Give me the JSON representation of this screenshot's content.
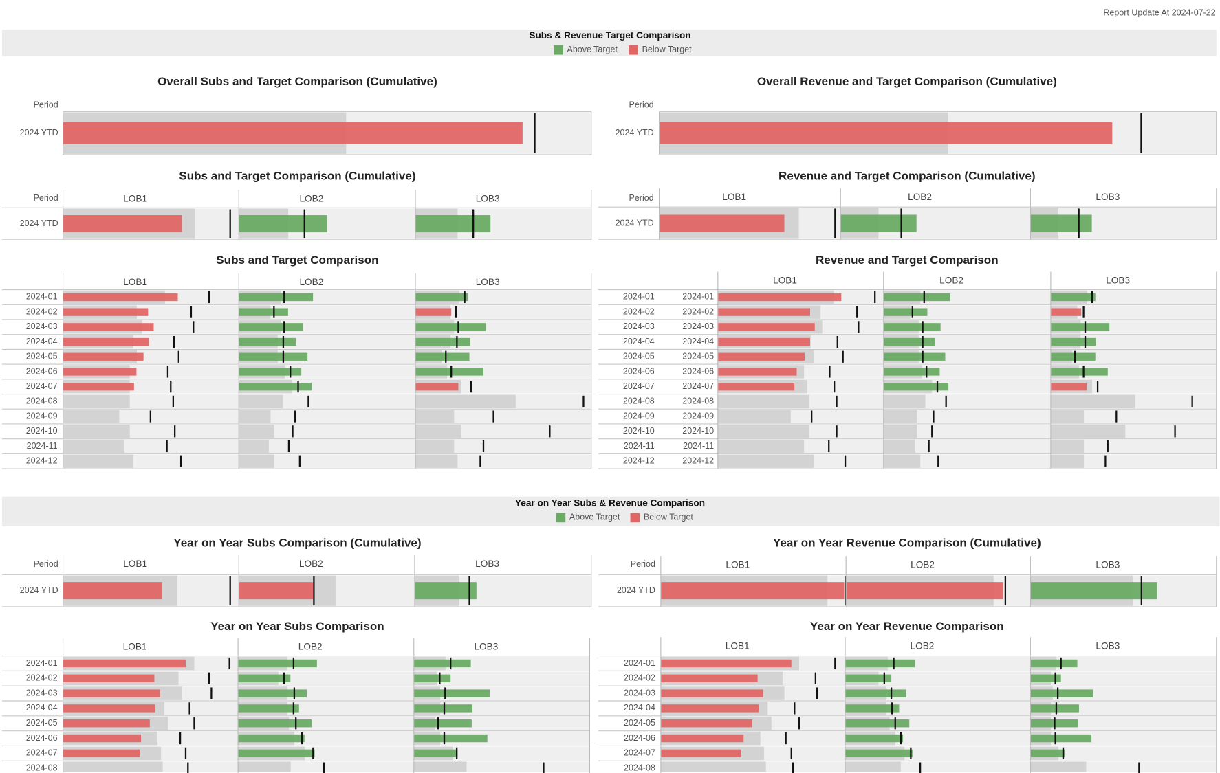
{
  "header": {
    "report_update": "Report Update At 2024-07-22"
  },
  "sections": [
    {
      "title": "Subs & Revenue Target Comparison",
      "legend": [
        {
          "label": "Above Target",
          "color": "#6aaa64"
        },
        {
          "label": "Below Target",
          "color": "#e06666"
        }
      ]
    },
    {
      "title": "Year on Year Subs & Revenue Comparison",
      "legend": [
        {
          "label": "Above Target",
          "color": "#6aaa64"
        },
        {
          "label": "Below Target",
          "color": "#e06666"
        }
      ]
    }
  ],
  "chart_data": [
    {
      "type": "bullet",
      "title": "Overall Subs and Target Comparison (Cumulative)",
      "period_header": "Period",
      "categories": [
        "2024 YTD"
      ],
      "xlim": [
        0,
        100
      ],
      "series": [
        {
          "values": [
            87.0
          ],
          "targets": [
            89.3
          ],
          "ranges": [
            53.6
          ]
        }
      ]
    },
    {
      "type": "bullet",
      "title": "Overall Revenue and Target Comparison (Cumulative)",
      "period_header": "Period",
      "categories": [
        "2024 YTD"
      ],
      "xlim": [
        0,
        100
      ],
      "series": [
        {
          "values": [
            81.3
          ],
          "targets": [
            86.5
          ],
          "ranges": [
            51.8
          ]
        }
      ]
    },
    {
      "type": "bullet",
      "title": "Subs and Target Comparison (Cumulative)",
      "period_header": "Period",
      "categories": [
        "2024 YTD"
      ],
      "xlim": [
        0,
        100
      ],
      "series": [
        {
          "name": "LOB1",
          "values": [
            67.6
          ],
          "targets": [
            95.1
          ],
          "ranges": [
            75
          ]
        },
        {
          "name": "LOB2",
          "values": [
            50.0
          ],
          "targets": [
            37.2
          ],
          "ranges": [
            28
          ]
        },
        {
          "name": "LOB3",
          "values": [
            42.7
          ],
          "targets": [
            32.9
          ],
          "ranges": [
            24
          ]
        }
      ]
    },
    {
      "type": "bullet",
      "title": "Revenue and Target Comparison (Cumulative)",
      "period_header": "Period",
      "categories": [
        "2024 YTD"
      ],
      "xlim": [
        0,
        100
      ],
      "series": [
        {
          "name": "LOB1",
          "values": [
            69.0
          ],
          "targets": [
            97.0
          ],
          "ranges": [
            77
          ]
        },
        {
          "name": "LOB2",
          "values": [
            40.0
          ],
          "targets": [
            32.0
          ],
          "ranges": [
            20
          ]
        },
        {
          "name": "LOB3",
          "values": [
            33.0
          ],
          "targets": [
            26.0
          ],
          "ranges": [
            15
          ]
        }
      ]
    },
    {
      "type": "bullet",
      "title": "Subs and Target Comparison",
      "xlim": [
        0,
        100
      ],
      "categories": [
        "2024-01",
        "2024-02",
        "2024-03",
        "2024-04",
        "2024-05",
        "2024-06",
        "2024-07",
        "2024-08",
        "2024-09",
        "2024-10",
        "2024-11",
        "2024-12"
      ],
      "series": [
        {
          "name": "LOB1",
          "values": [
            65.3,
            48.4,
            51.6,
            48.9,
            45.8,
            41.8,
            40.4,
            null,
            null,
            null,
            null,
            null
          ],
          "targets": [
            83.1,
            72.9,
            74.2,
            63.1,
            65.8,
            59.6,
            61.3,
            62.7,
            49.8,
            63.6,
            59.1,
            67.1
          ],
          "ranges": [
            58,
            42,
            45,
            40,
            42,
            38,
            38,
            38,
            32,
            38,
            35,
            40
          ]
        },
        {
          "name": "LOB2",
          "values": [
            42.0,
            27.9,
            36.3,
            32.3,
            38.9,
            35.4,
            41.2,
            null,
            null,
            null,
            null,
            null
          ],
          "targets": [
            25.7,
            19.9,
            25.7,
            25.2,
            25.2,
            29.2,
            33.6,
            39.4,
            31.9,
            30.5,
            28.3,
            34.5
          ],
          "ranges": [
            24,
            18,
            24,
            22,
            22,
            26,
            30,
            25,
            18,
            20,
            17,
            20
          ]
        },
        {
          "name": "LOB3",
          "values": [
            29.8,
            20.4,
            40.0,
            31.1,
            30.7,
            38.7,
            24.4,
            null,
            null,
            null,
            null,
            null
          ],
          "targets": [
            28.0,
            23.1,
            24.4,
            23.6,
            17.3,
            20.4,
            31.6,
            95.6,
            44.4,
            76.4,
            38.7,
            36.9
          ],
          "ranges": [
            25,
            20,
            22,
            20,
            15,
            18,
            26,
            57,
            22,
            26,
            22,
            24
          ]
        }
      ]
    },
    {
      "type": "bullet",
      "title": "Revenue and Target Comparison",
      "xlim": [
        0,
        100
      ],
      "categories": [
        "2024-01",
        "2024-02",
        "2024-03",
        "2024-04",
        "2024-05",
        "2024-06",
        "2024-07",
        "2024-08",
        "2024-09",
        "2024-10",
        "2024-11",
        "2024-12"
      ],
      "series": [
        {
          "name": "LOB1",
          "values": [
            74.5,
            55.7,
            58.5,
            55.7,
            52.4,
            47.6,
            46.2,
            null,
            null,
            null,
            null,
            null
          ],
          "targets": [
            94.8,
            84.0,
            84.9,
            72.2,
            75.5,
            67.5,
            70.3,
            71.7,
            56.6,
            71.7,
            67.0,
            76.9
          ],
          "ranges": [
            70,
            62,
            63,
            56,
            58,
            52,
            54,
            55,
            44,
            55,
            52,
            58
          ]
        },
        {
          "name": "LOB2",
          "values": [
            39.7,
            26.2,
            34.1,
            30.8,
            36.9,
            33.6,
            38.8,
            null,
            null,
            null,
            null,
            null
          ],
          "targets": [
            24.3,
            17.3,
            23.4,
            23.4,
            23.4,
            25.7,
            32.2,
            37.4,
            29.9,
            29.0,
            27.1,
            32.7
          ],
          "ranges": [
            22,
            16,
            21,
            21,
            21,
            23,
            29,
            25,
            20,
            20,
            19,
            22
          ]
        },
        {
          "name": "LOB3",
          "values": [
            26.9,
            18.4,
            35.4,
            27.4,
            26.9,
            34.4,
            21.7,
            null,
            null,
            null,
            null,
            null
          ],
          "targets": [
            25.0,
            19.8,
            20.8,
            20.8,
            14.6,
            19.8,
            28.3,
            85.4,
            39.6,
            75.0,
            34.4,
            33.0
          ],
          "ranges": [
            22,
            16,
            18,
            18,
            13,
            17,
            25,
            51,
            20,
            45,
            20,
            20
          ]
        }
      ]
    },
    {
      "type": "bullet",
      "title": "Year on Year Subs Comparison (Cumulative)",
      "period_header": "Period",
      "categories": [
        "2024 YTD"
      ],
      "xlim": [
        0,
        100
      ],
      "series": [
        {
          "name": "LOB1",
          "values": [
            56.4
          ],
          "targets": [
            95.1
          ],
          "ranges": [
            65
          ]
        },
        {
          "name": "LOB2",
          "values": [
            42.2
          ],
          "targets": [
            42.7
          ],
          "ranges": [
            55
          ]
        },
        {
          "name": "LOB3",
          "values": [
            35.0
          ],
          "targets": [
            31.0
          ],
          "ranges": [
            25
          ]
        }
      ]
    },
    {
      "type": "bullet",
      "title": "Year on Year Revenue Comparison (Cumulative)",
      "period_header": "Period",
      "categories": [
        "2024 YTD"
      ],
      "xlim": [
        0,
        100
      ],
      "series": [
        {
          "name": "LOB1",
          "values": [
            99.0
          ],
          "targets": [
            100
          ],
          "ranges": [
            90
          ]
        },
        {
          "name": "LOB2",
          "values": [
            85.2
          ],
          "targets": [
            86.4
          ],
          "ranges": [
            80
          ]
        },
        {
          "name": "LOB3",
          "values": [
            68.1
          ],
          "targets": [
            59.7
          ],
          "ranges": [
            55
          ]
        }
      ]
    },
    {
      "type": "bullet",
      "title": "Year on Year Subs Comparison",
      "xlim": [
        0,
        100
      ],
      "categories": [
        "2024-01",
        "2024-02",
        "2024-03",
        "2024-04",
        "2024-05",
        "2024-06",
        "2024-07",
        "2024-08"
      ],
      "series": [
        {
          "name": "LOB1",
          "values": [
            70.1,
            52.2,
            55.4,
            52.7,
            49.6,
            44.6,
            43.8,
            null
          ],
          "targets": [
            95.1,
            83.5,
            84.8,
            72.3,
            75.0,
            67.0,
            70.1,
            71.4
          ],
          "ranges": [
            75,
            66,
            68,
            58,
            60,
            54,
            56,
            57
          ]
        },
        {
          "name": "LOB2",
          "values": [
            44.9,
            29.8,
            39.1,
            34.7,
            41.8,
            37.8,
            43.6,
            null
          ],
          "targets": [
            31.6,
            26.2,
            32.0,
            31.6,
            32.9,
            36.4,
            42.7,
            48.9
          ],
          "ranges": [
            28,
            23,
            28,
            28,
            29,
            32,
            38,
            30
          ]
        },
        {
          "name": "LOB3",
          "values": [
            32.4,
            20.9,
            43.1,
            33.3,
            32.9,
            41.8,
            24.9,
            null
          ],
          "targets": [
            20.9,
            14.7,
            17.8,
            17.3,
            13.8,
            17.3,
            24.4,
            73.8
          ],
          "ranges": [
            18,
            13,
            15,
            15,
            12,
            15,
            22,
            30
          ]
        }
      ]
    },
    {
      "type": "bullet",
      "title": "Year on Year Revenue Comparison",
      "xlim": [
        0,
        100
      ],
      "categories": [
        "2024-01",
        "2024-02",
        "2024-03",
        "2024-04",
        "2024-05",
        "2024-06",
        "2024-07",
        "2024-08"
      ],
      "series": [
        {
          "name": "LOB1",
          "values": [
            70.8,
            52.5,
            55.5,
            53.0,
            49.6,
            44.9,
            43.6,
            null
          ],
          "targets": [
            94.5,
            83.9,
            84.7,
            72.5,
            75.0,
            67.8,
            70.8,
            71.6
          ],
          "ranges": [
            75,
            66,
            67,
            58,
            60,
            54,
            56,
            57
          ]
        },
        {
          "name": "LOB2",
          "values": [
            37.6,
            24.9,
            32.9,
            29.1,
            34.6,
            31.2,
            36.3,
            null
          ],
          "targets": [
            26.2,
            21.1,
            24.9,
            25.3,
            27.0,
            30.0,
            35.4,
            40.5
          ],
          "ranges": [
            23,
            18,
            22,
            22,
            24,
            27,
            32,
            30
          ]
        },
        {
          "name": "LOB3",
          "values": [
            25.2,
            16.4,
            33.6,
            26.1,
            25.6,
            32.8,
            18.5,
            null
          ],
          "targets": [
            16.4,
            13.4,
            14.7,
            13.9,
            13.0,
            13.4,
            17.6,
            58.4
          ],
          "ranges": [
            14,
            11,
            12,
            11,
            11,
            11,
            15,
            30
          ]
        }
      ]
    }
  ]
}
